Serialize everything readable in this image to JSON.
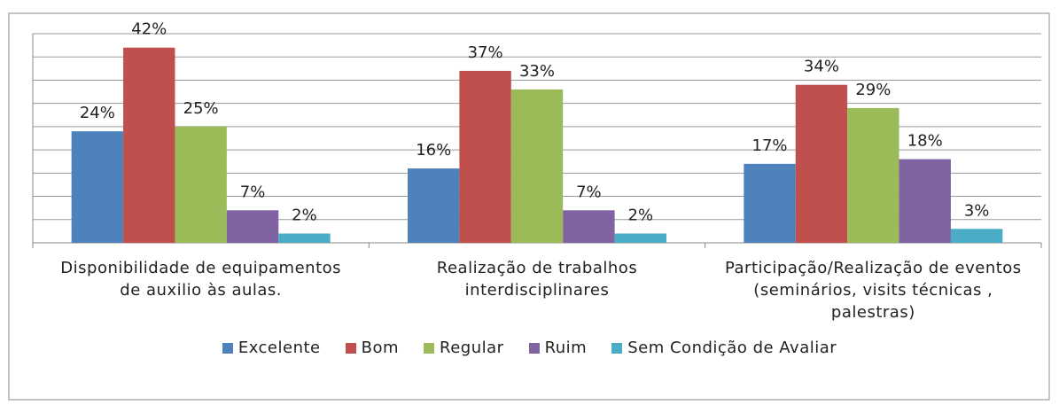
{
  "chart_data": {
    "type": "bar",
    "categories": [
      "Disponibilidade de equipamentos de auxilio às aulas.",
      "Realização de trabalhos interdisciplinares",
      "Participação/Realização de eventos (seminários, visits técnicas , palestras)"
    ],
    "series": [
      {
        "name": "Excelente",
        "color": "#4f81bd",
        "values": [
          24,
          16,
          17
        ],
        "value_labels": [
          "24%",
          "16%",
          "17%"
        ]
      },
      {
        "name": "Bom",
        "color": "#c0504d",
        "values": [
          42,
          37,
          34
        ],
        "value_labels": [
          "42%",
          "37%",
          "34%"
        ]
      },
      {
        "name": "Regular",
        "color": "#9bbb59",
        "values": [
          25,
          33,
          29
        ],
        "value_labels": [
          "25%",
          "33%",
          "29%"
        ]
      },
      {
        "name": "Ruim",
        "color": "#8064a2",
        "values": [
          7,
          7,
          18
        ],
        "value_labels": [
          "7%",
          "7%",
          "18%"
        ]
      },
      {
        "name": "Sem Condição de Avaliar",
        "color": "#4bacc6",
        "values": [
          2,
          2,
          3
        ],
        "value_labels": [
          "2%",
          "2%",
          "3%"
        ]
      }
    ],
    "ylim": [
      0,
      45
    ],
    "yticks": [
      0,
      5,
      10,
      15,
      20,
      25,
      30,
      35,
      40,
      45
    ],
    "grid": true
  }
}
